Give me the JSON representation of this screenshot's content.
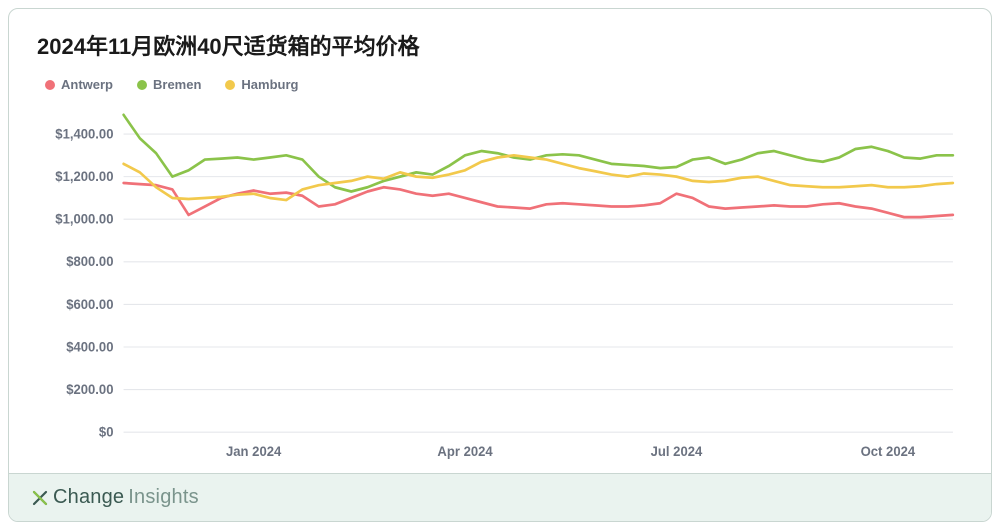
{
  "chart": {
    "type": "line",
    "title": "2024年11月欧洲40尺适货箱的平均价格",
    "title_fontsize": 22,
    "title_color": "#1a1a1a",
    "background_color": "#ffffff",
    "grid_color": "#e5e7eb",
    "axis_label_color": "#6b7280",
    "axis_label_fontsize": 13,
    "line_width": 2.5,
    "ylim": [
      0,
      1500
    ],
    "ytick_step": 200,
    "yticks": [
      {
        "v": 0,
        "label": "$0"
      },
      {
        "v": 200,
        "label": "$200.00"
      },
      {
        "v": 400,
        "label": "$400.00"
      },
      {
        "v": 600,
        "label": "$600.00"
      },
      {
        "v": 800,
        "label": "$800.00"
      },
      {
        "v": 1000,
        "label": "$1,000.00"
      },
      {
        "v": 1200,
        "label": "$1,200.00"
      },
      {
        "v": 1400,
        "label": "$1,400.00"
      }
    ],
    "x_points": 52,
    "xticks": [
      {
        "i": 8,
        "label": "Jan 2024"
      },
      {
        "i": 21,
        "label": "Apr 2024"
      },
      {
        "i": 34,
        "label": "Jul 2024"
      },
      {
        "i": 47,
        "label": "Oct 2024"
      }
    ],
    "series": [
      {
        "name": "Antwerp",
        "color": "#f07178",
        "values": [
          1170,
          1165,
          1160,
          1140,
          1020,
          1060,
          1100,
          1120,
          1135,
          1120,
          1125,
          1110,
          1060,
          1070,
          1100,
          1130,
          1150,
          1140,
          1120,
          1110,
          1120,
          1100,
          1080,
          1060,
          1055,
          1050,
          1070,
          1075,
          1070,
          1065,
          1060,
          1060,
          1065,
          1075,
          1120,
          1100,
          1060,
          1050,
          1055,
          1060,
          1065,
          1060,
          1060,
          1070,
          1075,
          1060,
          1050,
          1030,
          1010,
          1010,
          1015,
          1020
        ]
      },
      {
        "name": "Bremen",
        "color": "#8bc34a",
        "values": [
          1490,
          1380,
          1310,
          1200,
          1230,
          1280,
          1285,
          1290,
          1280,
          1290,
          1300,
          1280,
          1200,
          1150,
          1130,
          1150,
          1180,
          1200,
          1220,
          1210,
          1250,
          1300,
          1320,
          1310,
          1290,
          1280,
          1300,
          1305,
          1300,
          1280,
          1260,
          1255,
          1250,
          1240,
          1245,
          1280,
          1290,
          1260,
          1280,
          1310,
          1320,
          1300,
          1280,
          1270,
          1290,
          1330,
          1340,
          1320,
          1290,
          1285,
          1300,
          1300
        ]
      },
      {
        "name": "Hamburg",
        "color": "#f2c94c",
        "values": [
          1260,
          1220,
          1150,
          1100,
          1095,
          1100,
          1105,
          1115,
          1120,
          1100,
          1090,
          1140,
          1160,
          1170,
          1180,
          1200,
          1190,
          1220,
          1200,
          1195,
          1210,
          1230,
          1270,
          1290,
          1300,
          1290,
          1280,
          1260,
          1240,
          1225,
          1210,
          1200,
          1215,
          1210,
          1200,
          1180,
          1175,
          1180,
          1195,
          1200,
          1180,
          1160,
          1155,
          1150,
          1150,
          1155,
          1160,
          1150,
          1150,
          1155,
          1165,
          1170
        ]
      }
    ]
  },
  "footer": {
    "brand_prefix": "Change",
    "brand_suffix": "Insights",
    "background_color": "#eaf3ef",
    "text_color": "#3b5a52",
    "icon_color": "#3b5a52"
  }
}
